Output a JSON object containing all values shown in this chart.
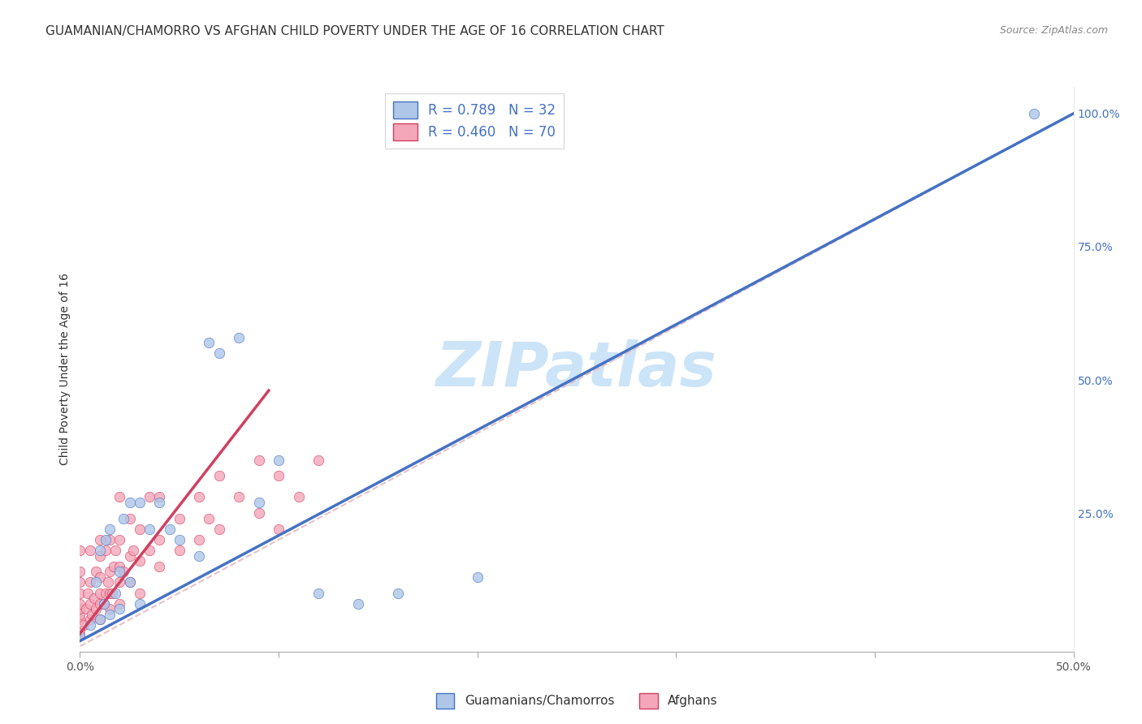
{
  "title": "GUAMANIAN/CHAMORRO VS AFGHAN CHILD POVERTY UNDER THE AGE OF 16 CORRELATION CHART",
  "source": "Source: ZipAtlas.com",
  "ylabel": "Child Poverty Under the Age of 16",
  "xlim": [
    0,
    0.5
  ],
  "ylim": [
    -0.01,
    1.05
  ],
  "legend_blue_label": "R = 0.789   N = 32",
  "legend_pink_label": "R = 0.460   N = 70",
  "bottom_legend_blue": "Guamanians/Chamorros",
  "bottom_legend_pink": "Afghans",
  "watermark": "ZIPatlas",
  "guamanian_x": [
    0.0,
    0.005,
    0.008,
    0.01,
    0.01,
    0.012,
    0.013,
    0.015,
    0.015,
    0.018,
    0.02,
    0.02,
    0.022,
    0.025,
    0.025,
    0.03,
    0.03,
    0.035,
    0.04,
    0.045,
    0.05,
    0.06,
    0.065,
    0.07,
    0.08,
    0.09,
    0.1,
    0.12,
    0.14,
    0.16,
    0.2,
    0.48
  ],
  "guamanian_y": [
    0.02,
    0.04,
    0.12,
    0.05,
    0.18,
    0.08,
    0.2,
    0.06,
    0.22,
    0.1,
    0.07,
    0.14,
    0.24,
    0.12,
    0.27,
    0.08,
    0.27,
    0.22,
    0.27,
    0.22,
    0.2,
    0.17,
    0.57,
    0.55,
    0.58,
    0.27,
    0.35,
    0.1,
    0.08,
    0.1,
    0.13,
    1.0
  ],
  "afghan_x": [
    0.0,
    0.0,
    0.0,
    0.0,
    0.0,
    0.0,
    0.0,
    0.0,
    0.0,
    0.0,
    0.002,
    0.003,
    0.004,
    0.005,
    0.005,
    0.005,
    0.005,
    0.006,
    0.007,
    0.008,
    0.008,
    0.01,
    0.01,
    0.01,
    0.01,
    0.01,
    0.01,
    0.012,
    0.013,
    0.013,
    0.014,
    0.015,
    0.015,
    0.015,
    0.015,
    0.016,
    0.017,
    0.018,
    0.02,
    0.02,
    0.02,
    0.02,
    0.02,
    0.022,
    0.025,
    0.025,
    0.025,
    0.027,
    0.03,
    0.03,
    0.03,
    0.035,
    0.035,
    0.04,
    0.04,
    0.04,
    0.05,
    0.05,
    0.06,
    0.06,
    0.065,
    0.07,
    0.07,
    0.08,
    0.09,
    0.09,
    0.1,
    0.1,
    0.11,
    0.12
  ],
  "afghan_y": [
    0.02,
    0.03,
    0.05,
    0.06,
    0.07,
    0.08,
    0.1,
    0.12,
    0.14,
    0.18,
    0.04,
    0.07,
    0.1,
    0.05,
    0.08,
    0.12,
    0.18,
    0.06,
    0.09,
    0.07,
    0.14,
    0.05,
    0.08,
    0.1,
    0.13,
    0.17,
    0.2,
    0.08,
    0.1,
    0.18,
    0.12,
    0.07,
    0.1,
    0.14,
    0.2,
    0.1,
    0.15,
    0.18,
    0.08,
    0.12,
    0.15,
    0.2,
    0.28,
    0.14,
    0.12,
    0.17,
    0.24,
    0.18,
    0.1,
    0.16,
    0.22,
    0.18,
    0.28,
    0.15,
    0.2,
    0.28,
    0.18,
    0.24,
    0.2,
    0.28,
    0.24,
    0.22,
    0.32,
    0.28,
    0.25,
    0.35,
    0.22,
    0.32,
    0.28,
    0.35
  ],
  "blue_line_x": [
    0.0,
    0.5
  ],
  "blue_line_y": [
    0.01,
    1.0
  ],
  "pink_line_x": [
    -0.005,
    0.095
  ],
  "pink_line_y": [
    0.0,
    0.48
  ],
  "diag_line_x": [
    0.0,
    0.5
  ],
  "diag_line_y": [
    0.0,
    1.0
  ],
  "bg_color": "#ffffff",
  "scatter_blue_color": "#aec6e8",
  "scatter_pink_color": "#f4a7b9",
  "line_blue_color": "#4472c4",
  "line_pink_color": "#d04060",
  "diag_color": "#e8c0c8",
  "grid_color": "#dddddd",
  "watermark_color": "#cce4f7",
  "title_fontsize": 11,
  "axis_label_fontsize": 10,
  "tick_fontsize": 10,
  "legend_fontsize": 11,
  "watermark_fontsize": 55,
  "scatter_size": 80
}
